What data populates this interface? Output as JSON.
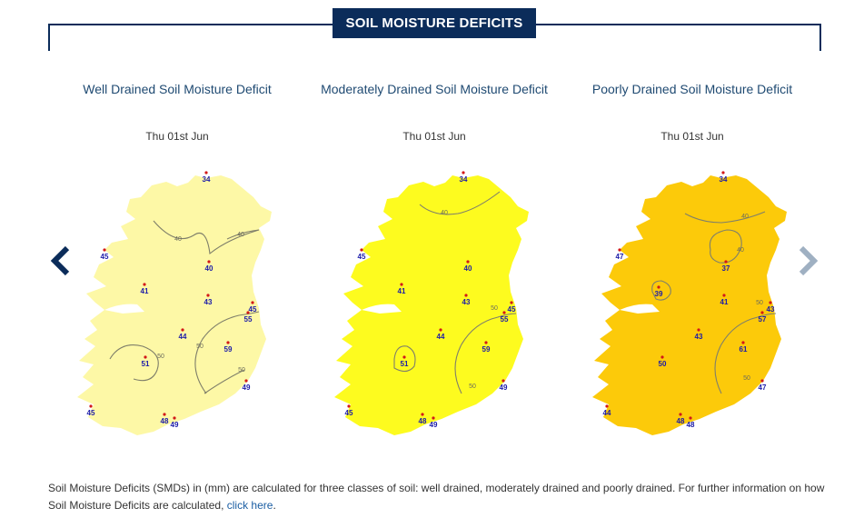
{
  "header": {
    "title": "SOIL MOISTURE DEFICITS"
  },
  "panels": [
    {
      "title": "Well Drained Soil Moisture Deficit",
      "date": "Thu 01st Jun",
      "fill_color": "#fdf8a6",
      "stations": [
        "34",
        "45",
        "41",
        "40",
        "43",
        "45",
        "55",
        "44",
        "59",
        "51",
        "49",
        "45",
        "48",
        "49"
      ],
      "contours": [
        "40",
        "40",
        "50",
        "50",
        "50"
      ]
    },
    {
      "title": "Moderately Drained Soil Moisture Deficit",
      "date": "Thu 01st Jun",
      "fill_color": "#fdfb1f",
      "stations": [
        "34",
        "45",
        "41",
        "40",
        "43",
        "45",
        "55",
        "44",
        "59",
        "51",
        "49",
        "45",
        "48",
        "49"
      ],
      "contours": [
        "40",
        "50",
        "50"
      ]
    },
    {
      "title": "Poorly Drained Soil Moisture Deficit",
      "date": "Thu 01st Jun",
      "fill_color": "#fcca0a",
      "stations": [
        "34",
        "47",
        "39",
        "37",
        "41",
        "43",
        "57",
        "43",
        "61",
        "50",
        "47",
        "44",
        "48",
        "48"
      ],
      "contours": [
        "40",
        "40",
        "50",
        "50"
      ]
    }
  ],
  "navigation": {
    "prev_icon": "chevron-left-icon",
    "next_icon": "chevron-right-icon"
  },
  "footer": {
    "text": "Soil Moisture Deficits (SMDs) in (mm) are calculated for three classes of soil: well drained, moderately drained and poorly drained. For further information on how Soil Moisture Deficits are calculated, ",
    "link_text": "click here",
    "suffix": "."
  },
  "colors": {
    "brand_navy": "#0b2c5a",
    "title_blue": "#1f4a72",
    "station_label": "#1a1aa8",
    "link": "#1b5ea3"
  }
}
